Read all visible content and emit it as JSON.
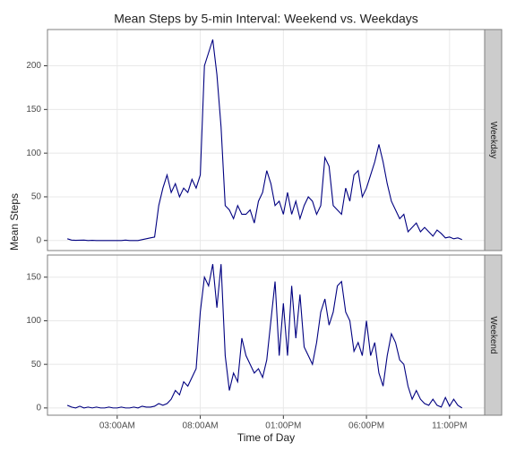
{
  "title": "Mean Steps by 5-min Interval: Weekend vs. Weekdays",
  "x_label": "Time of Day",
  "y_label": "Mean Steps",
  "chart_data": [
    {
      "type": "line",
      "panel_label": "Weekday",
      "color": "#000080",
      "grid": true,
      "xlim": [
        -71.75,
        1506.75
      ],
      "ylim": [
        -11.5,
        241.5
      ],
      "yticks": [
        0,
        50,
        100,
        150,
        200
      ],
      "x": [
        0,
        15,
        30,
        45,
        60,
        75,
        90,
        105,
        120,
        135,
        150,
        165,
        180,
        195,
        210,
        225,
        240,
        255,
        270,
        285,
        300,
        315,
        330,
        345,
        360,
        375,
        390,
        405,
        420,
        435,
        450,
        465,
        480,
        495,
        510,
        525,
        540,
        555,
        570,
        585,
        600,
        615,
        630,
        645,
        660,
        675,
        690,
        705,
        720,
        735,
        750,
        765,
        780,
        795,
        810,
        825,
        840,
        855,
        870,
        885,
        900,
        915,
        930,
        945,
        960,
        975,
        990,
        1005,
        1020,
        1035,
        1050,
        1065,
        1080,
        1095,
        1110,
        1125,
        1140,
        1155,
        1170,
        1185,
        1200,
        1215,
        1230,
        1245,
        1260,
        1275,
        1290,
        1305,
        1320,
        1335,
        1350,
        1365,
        1380,
        1395,
        1410,
        1425
      ],
      "values": [
        2,
        0.5,
        0.2,
        0.3,
        0.5,
        0,
        0.2,
        0,
        0,
        0,
        0,
        0,
        0,
        0,
        0.5,
        0,
        0,
        0,
        1,
        2,
        3,
        4,
        40,
        60,
        75,
        55,
        65,
        50,
        60,
        55,
        70,
        60,
        75,
        200,
        215,
        230,
        190,
        130,
        40,
        35,
        25,
        40,
        30,
        30,
        35,
        20,
        45,
        55,
        80,
        65,
        40,
        45,
        30,
        55,
        30,
        45,
        25,
        40,
        50,
        45,
        30,
        40,
        95,
        85,
        40,
        35,
        30,
        60,
        45,
        75,
        80,
        50,
        60,
        75,
        90,
        110,
        90,
        65,
        45,
        35,
        25,
        30,
        10,
        15,
        20,
        10,
        15,
        10,
        5,
        12,
        8,
        3,
        4,
        2,
        3,
        1
      ]
    },
    {
      "type": "line",
      "panel_label": "Weekend",
      "color": "#000080",
      "grid": true,
      "xlim": [
        -71.75,
        1506.75
      ],
      "ylim": [
        -8.35,
        175.4
      ],
      "yticks": [
        0,
        50,
        100,
        150
      ],
      "xticks": [
        {
          "value": 180,
          "label": "03:00AM"
        },
        {
          "value": 480,
          "label": "08:00AM"
        },
        {
          "value": 780,
          "label": "01:00PM"
        },
        {
          "value": 1080,
          "label": "06:00PM"
        },
        {
          "value": 1380,
          "label": "11:00PM"
        }
      ],
      "x": [
        0,
        15,
        30,
        45,
        60,
        75,
        90,
        105,
        120,
        135,
        150,
        165,
        180,
        195,
        210,
        225,
        240,
        255,
        270,
        285,
        300,
        315,
        330,
        345,
        360,
        375,
        390,
        405,
        420,
        435,
        450,
        465,
        480,
        495,
        510,
        525,
        540,
        555,
        570,
        585,
        600,
        615,
        630,
        645,
        660,
        675,
        690,
        705,
        720,
        735,
        750,
        765,
        780,
        795,
        810,
        825,
        840,
        855,
        870,
        885,
        900,
        915,
        930,
        945,
        960,
        975,
        990,
        1005,
        1020,
        1035,
        1050,
        1065,
        1080,
        1095,
        1110,
        1125,
        1140,
        1155,
        1170,
        1185,
        1200,
        1215,
        1230,
        1245,
        1260,
        1275,
        1290,
        1305,
        1320,
        1335,
        1350,
        1365,
        1380,
        1395,
        1410,
        1425
      ],
      "values": [
        3,
        1,
        0,
        2,
        0,
        1,
        0,
        1,
        0,
        0,
        1,
        0,
        0,
        1,
        0,
        0,
        1,
        0,
        2,
        1,
        1,
        2,
        5,
        3,
        5,
        10,
        20,
        15,
        30,
        25,
        35,
        45,
        110,
        150,
        140,
        165,
        115,
        165,
        60,
        20,
        40,
        30,
        80,
        60,
        50,
        40,
        45,
        35,
        55,
        100,
        145,
        60,
        120,
        60,
        140,
        80,
        130,
        70,
        60,
        50,
        75,
        110,
        125,
        95,
        110,
        140,
        145,
        110,
        100,
        65,
        75,
        60,
        100,
        60,
        75,
        40,
        25,
        60,
        85,
        75,
        55,
        50,
        25,
        10,
        20,
        10,
        5,
        3,
        10,
        3,
        1,
        12,
        2,
        10,
        3,
        0
      ]
    }
  ]
}
